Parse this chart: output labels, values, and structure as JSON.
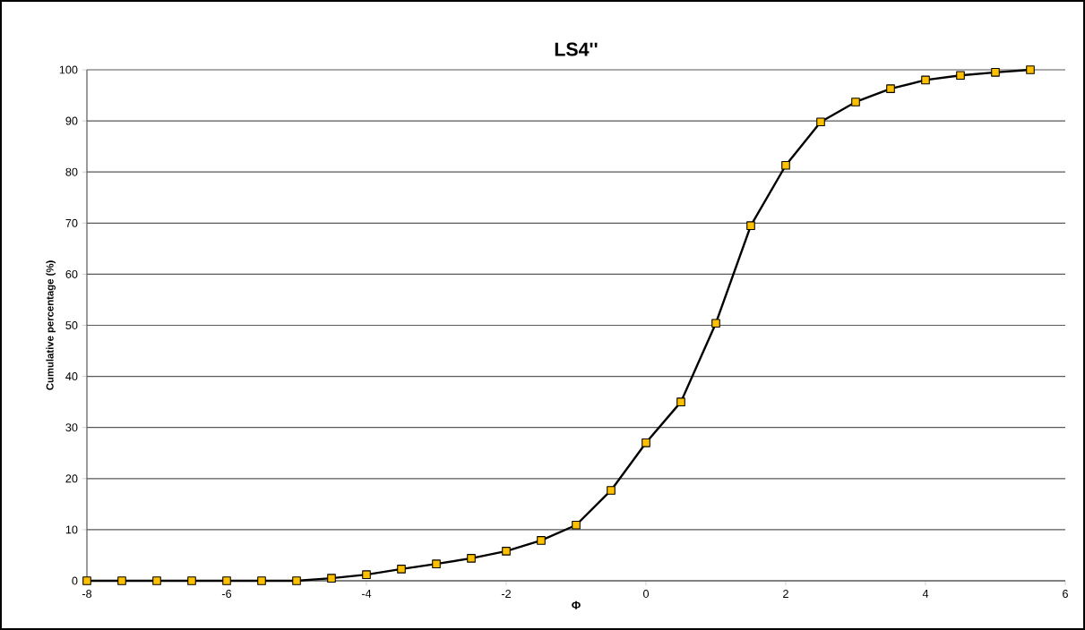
{
  "chart_data": {
    "type": "line",
    "title": "LS4''",
    "xlabel": "Φ",
    "ylabel": "Cumulative percentage (%)",
    "x": [
      -8,
      -7.5,
      -7,
      -6.5,
      -6,
      -5.5,
      -5,
      -4.5,
      -4,
      -3.5,
      -3,
      -2.5,
      -2,
      -1.5,
      -1,
      -0.5,
      0,
      0.5,
      1,
      1.5,
      2,
      2.5,
      3,
      3.5,
      4,
      4.5,
      5,
      5.5
    ],
    "series": [
      {
        "color": "#ffc000",
        "values": [
          0,
          0,
          0,
          0,
          0,
          0,
          0,
          0.5,
          1.2,
          2.3,
          3.3,
          4.4,
          5.8,
          7.9,
          10.9,
          17.7,
          27,
          35,
          50.4,
          69.5,
          81.3,
          89.8,
          93.7,
          96.3,
          98,
          98.9,
          99.5,
          100
        ]
      }
    ],
    "xlim": [
      -8,
      6
    ],
    "xticks": [
      -8,
      -6,
      -4,
      -2,
      0,
      2,
      4,
      6
    ],
    "ylim": [
      0,
      100
    ],
    "yticks": [
      0,
      10,
      20,
      30,
      40,
      50,
      60,
      70,
      80,
      90,
      100
    ],
    "grid": "y",
    "marker": "square",
    "line_style": "solid"
  }
}
